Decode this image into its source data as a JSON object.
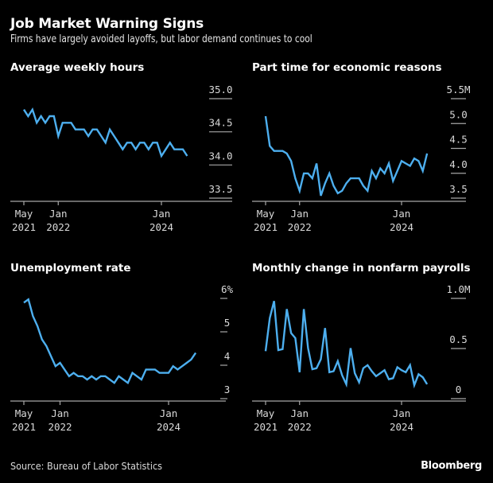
{
  "header": {
    "title": "Job Market Warning Signs",
    "subtitle": "Firms have largely avoided layoffs, but labor demand continues to cool"
  },
  "footer": {
    "source": "Source: Bureau of Labor Statistics",
    "brand": "Bloomberg"
  },
  "colors": {
    "background": "#000000",
    "line": "#4DAFEF",
    "axis": "#a6a6a6",
    "text": "#ffffff"
  },
  "chart_data": [
    {
      "type": "line",
      "title": "Average weekly hours",
      "xlabel": "",
      "ylabel": "",
      "x_start": "2021-05",
      "x_ticks": [
        {
          "month_index": 0,
          "line1": "May",
          "line2": "2021"
        },
        {
          "month_index": 8,
          "line1": "Jan",
          "line2": "2022"
        },
        {
          "month_index": 32,
          "line1": "Jan",
          "line2": "2024"
        }
      ],
      "y_ticks": [
        "35.0",
        "34.5",
        "34.0",
        "33.5"
      ],
      "y_tick_values": [
        35.0,
        34.5,
        34.0,
        33.5
      ],
      "ylim": [
        33.5,
        35.0
      ],
      "grid": false,
      "series": [
        {
          "name": "Average weekly hours",
          "values": [
            34.8,
            34.7,
            34.8,
            34.6,
            34.7,
            34.6,
            34.7,
            34.7,
            34.4,
            34.6,
            34.6,
            34.6,
            34.5,
            34.5,
            34.5,
            34.4,
            34.5,
            34.5,
            34.4,
            34.3,
            34.5,
            34.4,
            34.3,
            34.2,
            34.3,
            34.3,
            34.2,
            34.3,
            34.3,
            34.2,
            34.3,
            34.3,
            34.1,
            34.2,
            34.3,
            34.2,
            34.2,
            34.2,
            34.1
          ]
        }
      ]
    },
    {
      "type": "line",
      "title": "Part time for economic reasons",
      "xlabel": "",
      "ylabel": "",
      "x_start": "2021-05",
      "x_ticks": [
        {
          "month_index": 0,
          "line1": "May",
          "line2": "2021"
        },
        {
          "month_index": 8,
          "line1": "Jan",
          "line2": "2022"
        },
        {
          "month_index": 32,
          "line1": "Jan",
          "line2": "2024"
        }
      ],
      "y_ticks": [
        "5.5M",
        "5.0",
        "4.5",
        "4.0",
        "3.5"
      ],
      "y_tick_values": [
        5.5,
        5.0,
        4.5,
        4.0,
        3.5
      ],
      "ylim": [
        3.5,
        5.5
      ],
      "grid": false,
      "series": [
        {
          "name": "Part time for economic reasons (millions)",
          "values": [
            5.1,
            4.5,
            4.4,
            4.4,
            4.4,
            4.35,
            4.2,
            3.85,
            3.6,
            3.95,
            3.95,
            3.85,
            4.15,
            3.5,
            3.75,
            3.95,
            3.7,
            3.55,
            3.6,
            3.75,
            3.85,
            3.85,
            3.85,
            3.7,
            3.6,
            4.0,
            3.85,
            4.05,
            3.95,
            4.15,
            3.8,
            4.0,
            4.2,
            4.15,
            4.1,
            4.25,
            4.2,
            4.0,
            4.35
          ]
        }
      ]
    },
    {
      "type": "line",
      "title": "Unemployment rate",
      "xlabel": "",
      "ylabel": "",
      "x_start": "2021-05",
      "x_ticks": [
        {
          "month_index": 0,
          "line1": "May",
          "line2": "2021"
        },
        {
          "month_index": 8,
          "line1": "Jan",
          "line2": "2022"
        },
        {
          "month_index": 32,
          "line1": "Jan",
          "line2": "2024"
        }
      ],
      "y_ticks": [
        "6%",
        "5",
        "4",
        "3"
      ],
      "y_tick_values": [
        6,
        5,
        4,
        3
      ],
      "ylim": [
        3,
        6
      ],
      "grid": false,
      "series": [
        {
          "name": "Unemployment rate (%)",
          "values": [
            5.8,
            5.9,
            5.4,
            5.1,
            4.7,
            4.5,
            4.2,
            3.9,
            4.0,
            3.8,
            3.6,
            3.7,
            3.6,
            3.6,
            3.5,
            3.6,
            3.5,
            3.6,
            3.6,
            3.5,
            3.4,
            3.6,
            3.5,
            3.4,
            3.7,
            3.6,
            3.5,
            3.8,
            3.8,
            3.8,
            3.7,
            3.7,
            3.7,
            3.9,
            3.8,
            3.9,
            4.0,
            4.1,
            4.3
          ]
        }
      ]
    },
    {
      "type": "line",
      "title": "Monthly change in nonfarm payrolls",
      "xlabel": "",
      "ylabel": "",
      "x_start": "2021-05",
      "x_ticks": [
        {
          "month_index": 0,
          "line1": "May",
          "line2": "2021"
        },
        {
          "month_index": 8,
          "line1": "Jan",
          "line2": "2022"
        },
        {
          "month_index": 32,
          "line1": "Jan",
          "line2": "2024"
        }
      ],
      "y_ticks": [
        "1.0M",
        "0.5",
        "0"
      ],
      "y_tick_values": [
        1.0,
        0.5,
        0
      ],
      "ylim": [
        0,
        1.0
      ],
      "grid": false,
      "series": [
        {
          "name": "Monthly change in nonfarm payrolls (millions)",
          "values": [
            0.45,
            0.78,
            0.95,
            0.46,
            0.47,
            0.87,
            0.63,
            0.58,
            0.24,
            0.87,
            0.48,
            0.27,
            0.28,
            0.37,
            0.68,
            0.24,
            0.25,
            0.35,
            0.21,
            0.12,
            0.48,
            0.23,
            0.14,
            0.28,
            0.31,
            0.25,
            0.2,
            0.23,
            0.26,
            0.17,
            0.18,
            0.29,
            0.26,
            0.24,
            0.31,
            0.11,
            0.22,
            0.19,
            0.12
          ]
        }
      ]
    }
  ]
}
